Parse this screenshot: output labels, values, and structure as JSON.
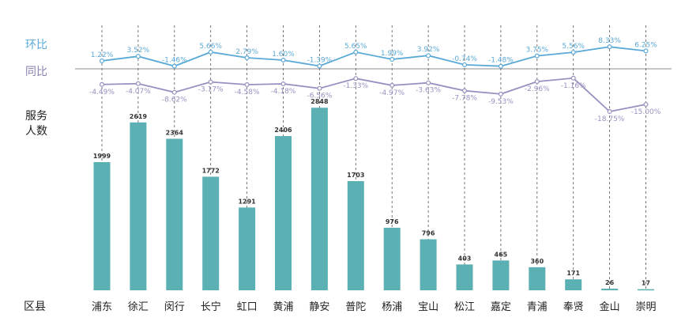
{
  "labels": {
    "mom": "环比",
    "yoy": "同比",
    "service_line1": "服务",
    "service_line2": "人数",
    "district": "区县"
  },
  "colors": {
    "bar": "#5bb0b4",
    "mom_line": "#5aa9d6",
    "yoy_line": "#9b8fc0",
    "grid": "#555555"
  },
  "chart_data": {
    "type": "bar",
    "categories": [
      "浦东",
      "徐汇",
      "闵行",
      "长宁",
      "虹口",
      "黄浦",
      "静安",
      "普陀",
      "杨浦",
      "宝山",
      "松江",
      "嘉定",
      "青浦",
      "奉贤",
      "金山",
      "崇明"
    ],
    "values": [
      1999,
      2619,
      2364,
      1772,
      1291,
      2406,
      2848,
      1703,
      976,
      796,
      403,
      465,
      360,
      171,
      26,
      17
    ],
    "value_labels": [
      "1999",
      "2619",
      "2364",
      "1772",
      "1291",
      "2406",
      "2848",
      "1703",
      "976",
      "796",
      "403",
      "465",
      "360",
      "171",
      "26",
      "17"
    ],
    "ylim": [
      0,
      2900
    ],
    "mom_values": [
      1.22,
      3.52,
      -1.46,
      5.66,
      2.79,
      1.6,
      -1.39,
      5.65,
      1.99,
      3.92,
      -0.74,
      -1.48,
      3.75,
      5.56,
      8.33,
      6.25
    ],
    "mom_labels": [
      "1.22%",
      "3.52%",
      "-1.46%",
      "5.66%",
      "2.79%",
      "1.60%",
      "-1.39%",
      "5.65%",
      "1.99%",
      "3.92%",
      "-0.74%",
      "-1.48%",
      "3.75%",
      "5.56%",
      "8.33%",
      "6.25%"
    ],
    "yoy_values": [
      -4.49,
      -4.07,
      -8.62,
      -3.17,
      -4.58,
      -4.18,
      -6.56,
      -1.33,
      -4.97,
      -3.63,
      -7.78,
      -9.53,
      -2.96,
      -1.16,
      -18.75,
      -15.0
    ],
    "yoy_labels": [
      "-4.49%",
      "-4.07%",
      "-8.62%",
      "-3.17%",
      "-4.58%",
      "-4.18%",
      "-6.56%",
      "-1.33%",
      "-4.97%",
      "-3.63%",
      "-7.78%",
      "-9.53%",
      "-2.96%",
      "-1.16%",
      "-18.75%",
      "-15.00%"
    ],
    "grid": true
  }
}
